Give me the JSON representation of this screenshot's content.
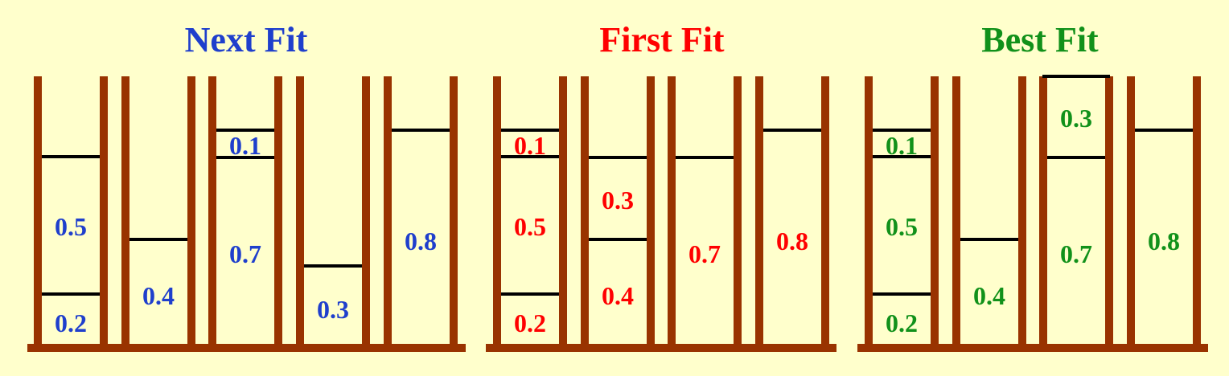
{
  "colors": {
    "background": "#FFFFCC",
    "post": "#993300",
    "line": "#000000",
    "next_fit": "#1F3FCC",
    "first_fit": "#FF0000",
    "best_fit": "#11911A"
  },
  "groups": [
    {
      "title": "Next Fit",
      "bins": [
        {
          "items": [
            0.2,
            0.5
          ]
        },
        {
          "items": [
            0.4
          ]
        },
        {
          "items": [
            0.7,
            0.1
          ]
        },
        {
          "items": [
            0.3
          ]
        },
        {
          "items": [
            0.8
          ]
        }
      ]
    },
    {
      "title": "First Fit",
      "bins": [
        {
          "items": [
            0.2,
            0.5,
            0.1
          ]
        },
        {
          "items": [
            0.4,
            0.3
          ]
        },
        {
          "items": [
            0.7
          ]
        },
        {
          "items": [
            0.8
          ]
        }
      ]
    },
    {
      "title": "Best Fit",
      "bins": [
        {
          "items": [
            0.2,
            0.5,
            0.1
          ]
        },
        {
          "items": [
            0.4
          ]
        },
        {
          "items": [
            0.7,
            0.3
          ]
        },
        {
          "items": [
            0.8
          ]
        }
      ]
    }
  ]
}
